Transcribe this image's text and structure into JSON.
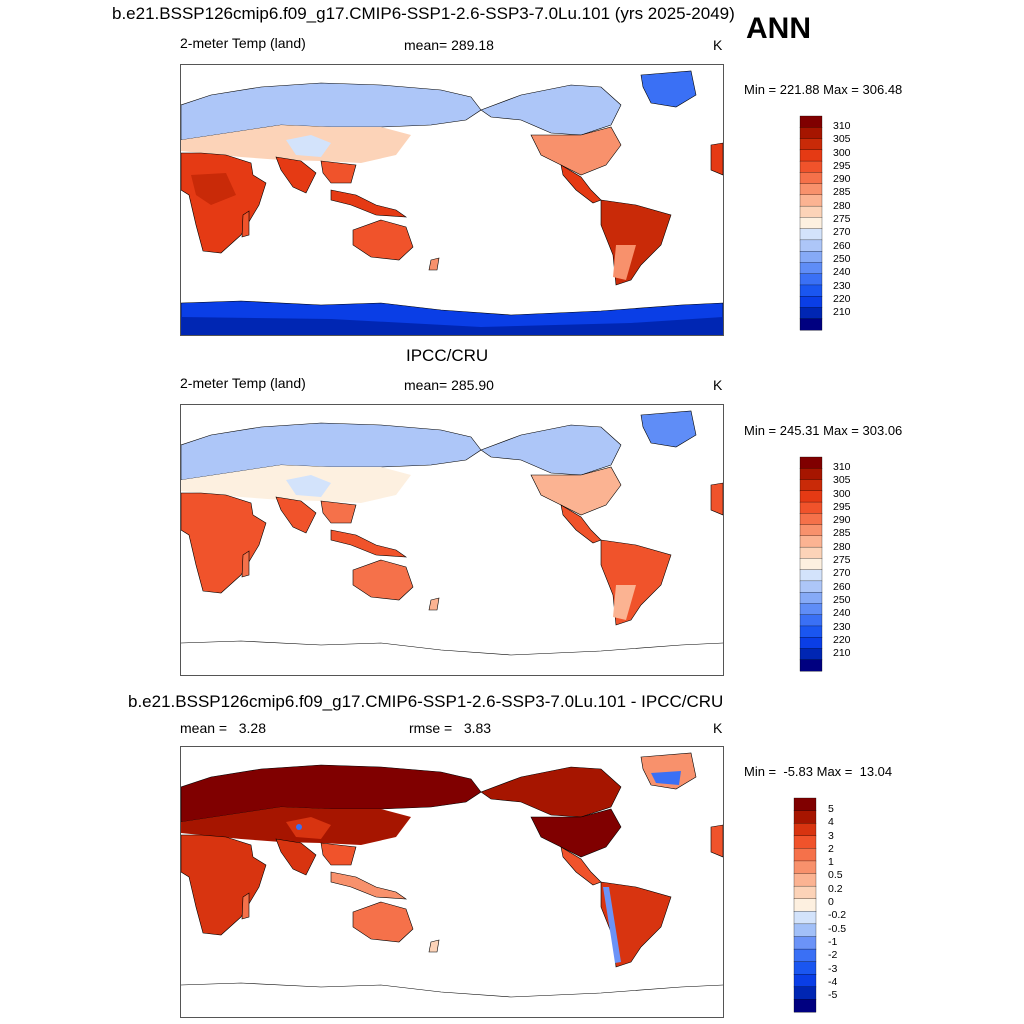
{
  "season": "ANN",
  "colors": {
    "abs_scale": [
      "#000080",
      "#0026b3",
      "#0a3ee6",
      "#1a56f0",
      "#3a70f5",
      "#5f8df7",
      "#86aaf7",
      "#adc6f8",
      "#d3e3fb",
      "#fdf0e0",
      "#fcd3b8",
      "#fbb392",
      "#f8916c",
      "#f5714a",
      "#f0532b",
      "#e53a14",
      "#c92a08",
      "#a61500",
      "#800000"
    ],
    "diff_scale": [
      "#000080",
      "#0026b3",
      "#0a3ee6",
      "#1a56f0",
      "#3a70f5",
      "#6b93f7",
      "#a2c0f8",
      "#d3e3fb",
      "#fdf0e0",
      "#fcd3b8",
      "#fbb392",
      "#f8916c",
      "#f5714a",
      "#f0532b",
      "#d83410",
      "#a61500",
      "#800000"
    ],
    "land_outline": "#000000",
    "map_frame": "#555555"
  },
  "panels": [
    {
      "title": "b.e21.BSSP126cmip6.f09_g17.CMIP6-SSP1-2.6-SSP3-7.0Lu.101 (yrs 2025-2049)",
      "left_label": "2-meter Temp (land)",
      "center_label": "mean= 289.18",
      "units": "K",
      "minmax": "Min = 221.88 Max = 306.48",
      "colorbar_labels": [
        "310",
        "305",
        "300",
        "295",
        "290",
        "285",
        "280",
        "275",
        "270",
        "260",
        "250",
        "240",
        "230",
        "220",
        "210"
      ],
      "map_name": "Model annual mean 2-m land temperature"
    },
    {
      "title": "IPCC/CRU",
      "left_label": "2-meter Temp (land)",
      "center_label": "mean= 285.90",
      "units": "K",
      "minmax": "Min = 245.31 Max = 303.06",
      "colorbar_labels": [
        "310",
        "305",
        "300",
        "295",
        "290",
        "285",
        "280",
        "275",
        "270",
        "260",
        "250",
        "240",
        "230",
        "220",
        "210"
      ],
      "map_name": "Observed IPCC/CRU 2-m land temperature"
    },
    {
      "title": "b.e21.BSSP126cmip6.f09_g17.CMIP6-SSP1-2.6-SSP3-7.0Lu.101 - IPCC/CRU",
      "left_label": "mean =   3.28",
      "center_label": "rmse =   3.83",
      "units": "K",
      "minmax": "Min =  -5.83 Max =  13.04",
      "colorbar_labels": [
        "5",
        "4",
        "3",
        "2",
        "1",
        "0.5",
        "0.2",
        "0",
        "-0.2",
        "-0.5",
        "-1",
        "-2",
        "-3",
        "-4",
        "-5"
      ],
      "map_name": "Model minus observation difference"
    }
  ]
}
